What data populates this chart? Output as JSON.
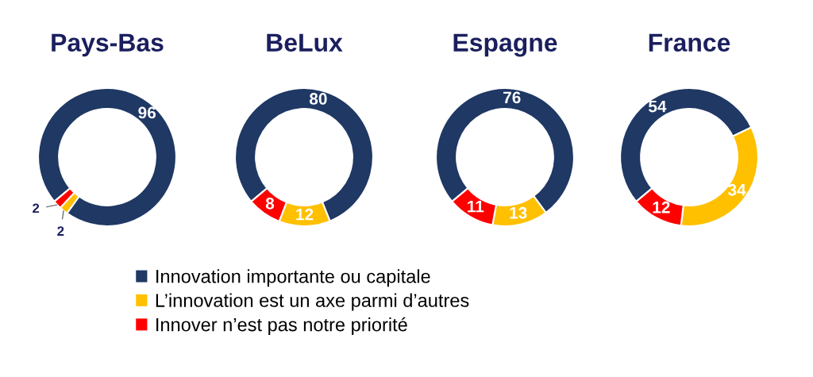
{
  "chart_data": [
    {
      "type": "donut",
      "title": "Pays-Bas",
      "categories": [
        "Innovation importante ou capitale",
        "L’innovation est un axe parmi d’autres",
        "Innover n’est pas notre priorité"
      ],
      "values": [
        96,
        2,
        2
      ],
      "colors": [
        "#1f3864",
        "#ffc000",
        "#ff0000"
      ],
      "data_labels": true,
      "legend": "bottom"
    },
    {
      "type": "donut",
      "title": "BeLux",
      "values": [
        80,
        12,
        8
      ],
      "colors": [
        "#1f3864",
        "#ffc000",
        "#ff0000"
      ],
      "data_labels": true
    },
    {
      "type": "donut",
      "title": "Espagne",
      "values": [
        76,
        13,
        11
      ],
      "colors": [
        "#1f3864",
        "#ffc000",
        "#ff0000"
      ],
      "data_labels": true
    },
    {
      "type": "donut",
      "title": "France",
      "values": [
        54,
        34,
        12
      ],
      "colors": [
        "#1f3864",
        "#ffc000",
        "#ff0000"
      ],
      "data_labels": true
    }
  ]
}
